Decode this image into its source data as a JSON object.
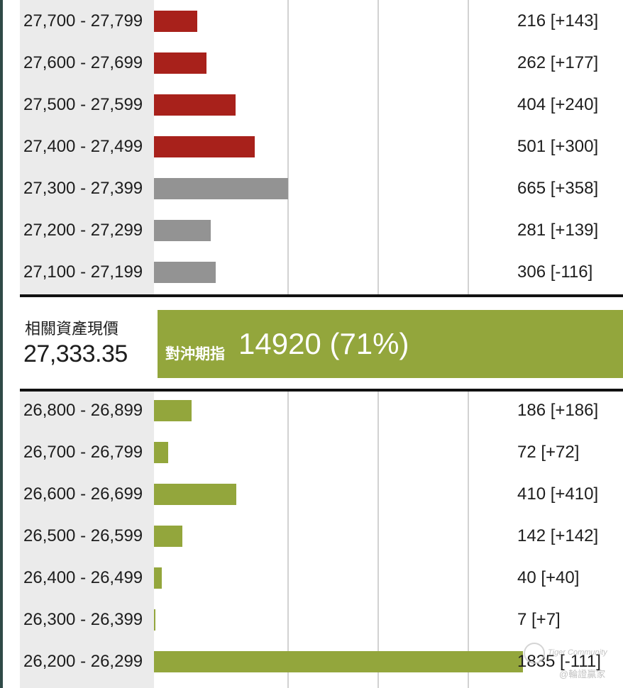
{
  "colors": {
    "call_bar": "#a8211b",
    "neutral_bar": "#939393",
    "put_bar": "#93a63c",
    "hedge_box": "#93a63c"
  },
  "spot": {
    "title": "相關資產現價",
    "value": "27,333.35"
  },
  "hedge": {
    "label": "對沖期指",
    "value": "14920 (71%)"
  },
  "watermark": {
    "line1": "Tiger Community",
    "line2": "@輪證贏家"
  },
  "chart_data": {
    "type": "bar",
    "orientation": "horizontal",
    "xlim": [
      0,
      2000
    ],
    "upper": [
      {
        "range": "27,700 - 27,799",
        "value": 216,
        "value_label": "216 [+143]",
        "color": "call_bar"
      },
      {
        "range": "27,600 - 27,699",
        "value": 262,
        "value_label": "262 [+177]",
        "color": "call_bar"
      },
      {
        "range": "27,500 - 27,599",
        "value": 404,
        "value_label": "404 [+240]",
        "color": "call_bar"
      },
      {
        "range": "27,400 - 27,499",
        "value": 501,
        "value_label": "501 [+300]",
        "color": "call_bar"
      },
      {
        "range": "27,300 - 27,399",
        "value": 665,
        "value_label": "665 [+358]",
        "color": "neutral_bar"
      },
      {
        "range": "27,200 - 27,299",
        "value": 281,
        "value_label": "281 [+139]",
        "color": "neutral_bar"
      },
      {
        "range": "27,100 - 27,199",
        "value": 306,
        "value_label": "306 [-116]",
        "color": "neutral_bar"
      }
    ],
    "lower": [
      {
        "range": "26,800 - 26,899",
        "value": 186,
        "value_label": "186 [+186]",
        "color": "put_bar"
      },
      {
        "range": "26,700 - 26,799",
        "value": 72,
        "value_label": "72 [+72]",
        "color": "put_bar"
      },
      {
        "range": "26,600 - 26,699",
        "value": 410,
        "value_label": "410 [+410]",
        "color": "put_bar"
      },
      {
        "range": "26,500 - 26,599",
        "value": 142,
        "value_label": "142 [+142]",
        "color": "put_bar"
      },
      {
        "range": "26,400 - 26,499",
        "value": 40,
        "value_label": "40 [+40]",
        "color": "put_bar"
      },
      {
        "range": "26,300 - 26,399",
        "value": 7,
        "value_label": "7 [+7]",
        "color": "put_bar"
      },
      {
        "range": "26,200 - 26,299",
        "value": 1835,
        "value_label": "1835 [-111]",
        "color": "put_bar"
      }
    ]
  }
}
